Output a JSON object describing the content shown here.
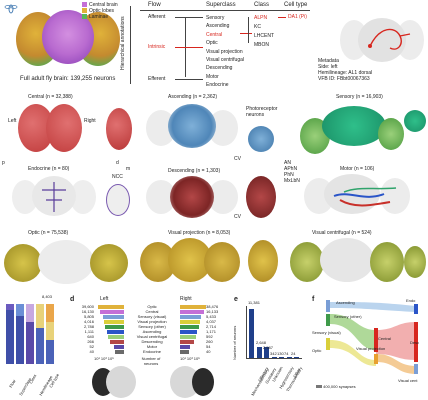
{
  "panel_a": {
    "legend": [
      {
        "label": "Central brain",
        "color": "#c46fd6"
      },
      {
        "label": "Optic lobes",
        "color": "#e0b23a"
      },
      {
        "label": "Laminae",
        "color": "#57b85a"
      }
    ],
    "caption": "Full adult fly brain: 139,255 neurons",
    "hierarchy_label": "Hierarchical annotations",
    "headers": [
      "Flow",
      "Superclass",
      "Class",
      "Cell type"
    ],
    "flow": [
      "Afferent",
      "Intrinsic",
      "Efferent"
    ],
    "superclass": [
      "Sensory",
      "Ascending",
      "Central",
      "Optic",
      "Visual projection",
      "Visual centrifugal",
      "Descending",
      "Motor",
      "Endocrine"
    ],
    "class": [
      "ALPN",
      "KC",
      "LHCENT",
      "MBON"
    ],
    "cell_type": "DA1 (Pi)",
    "metadata": [
      "Metadata",
      "Side: left",
      "Hemilineage: AL1 dorsal",
      "VFB ID: FBbt00067363"
    ]
  },
  "panel_b": {
    "items": [
      {
        "label": "Central (n = 32,388)"
      },
      {
        "label": "Ascending (n = 2,362)"
      },
      {
        "label": "Sensory (n = 16,903)"
      },
      {
        "label": "Endocrine (n = 80)"
      },
      {
        "label": "Descending (n = 1,303)"
      },
      {
        "label": "Motor (n = 106)"
      },
      {
        "label": "Optic (n = 75,538)"
      },
      {
        "label": "Visual projection (n = 8,053)"
      },
      {
        "label": "Visual centrifugal (n = 524)"
      }
    ],
    "labels": {
      "left": "Left",
      "right": "Right",
      "photoreceptor": "Photoreceptor neurons",
      "ncc": "NCC",
      "cv1": "CV",
      "cv2": "CV",
      "d": "d",
      "m": "m",
      "p": "p",
      "sensory_types": [
        "AN",
        "APhN",
        "PhN",
        "MxLbN"
      ]
    }
  },
  "panel_c": {
    "bar_labels": [
      "8,403"
    ],
    "x_labels": [
      "Flow",
      "Superclass",
      "Class",
      "Hemilineage",
      "Cell type"
    ]
  },
  "panel_d": {
    "left_title": "Left",
    "right_title": "Right",
    "categories": [
      "Optic",
      "Central",
      "Sensory (visual)",
      "Visual projection",
      "Sensory (other)",
      "Ascending",
      "Visual centrifugal",
      "Descending",
      "Motor",
      "Endocrine"
    ],
    "left_values": [
      "39,600",
      "16,130",
      "5,805",
      "4,016",
      "2,788",
      "1,111",
      "640",
      "266",
      "52",
      "40"
    ],
    "right_values": [
      "38,476",
      "16,133",
      "5,433",
      "4,037",
      "2,714",
      "1,171",
      "592",
      "260",
      "54",
      "40"
    ],
    "axis_left": "10¹ 10³ 10⁵",
    "axis_right": "10¹ 10³ 10⁵",
    "axis_title": "Number of neurons"
  },
  "panel_e": {
    "ylabel": "Number of neurons",
    "values_labels": [
      "11,381",
      "2,648",
      "2,587",
      "342",
      "130",
      "74",
      "24"
    ],
    "categories": [
      "Mechanosensory",
      "Olfactory",
      "Gustatory",
      "Unknown",
      "Hygrosensory",
      "Thermosensory",
      "Other"
    ]
  },
  "panel_f": {
    "labels": [
      "Ascending",
      "Sensory (other)",
      "Sensory (visual)",
      "Optic",
      "Visual projection",
      "Central",
      "Endo",
      "Desc",
      "Visual cent"
    ],
    "legend": "400,000 synapses"
  },
  "chart_data": [
    {
      "type": "bar",
      "categories": [
        "Optic",
        "Central",
        "Sensory (visual)",
        "Visual projection",
        "Sensory (other)",
        "Ascending",
        "Visual centrifugal",
        "Descending",
        "Motor",
        "Endocrine"
      ],
      "series": [
        {
          "name": "Left",
          "values": [
            39600,
            16130,
            5805,
            4016,
            2788,
            1111,
            640,
            266,
            52,
            40
          ]
        },
        {
          "name": "Right",
          "values": [
            38476,
            16133,
            5433,
            4037,
            2714,
            1171,
            592,
            260,
            54,
            40
          ]
        }
      ],
      "xlabel": "Number of neurons"
    },
    {
      "type": "bar",
      "categories": [
        "Mechanosensory",
        "Olfactory",
        "Gustatory",
        "Unknown",
        "Hygrosensory",
        "Thermosensory",
        "Other"
      ],
      "values": [
        11381,
        2648,
        2587,
        342,
        130,
        74,
        24
      ],
      "ylabel": "Number of neurons"
    }
  ]
}
